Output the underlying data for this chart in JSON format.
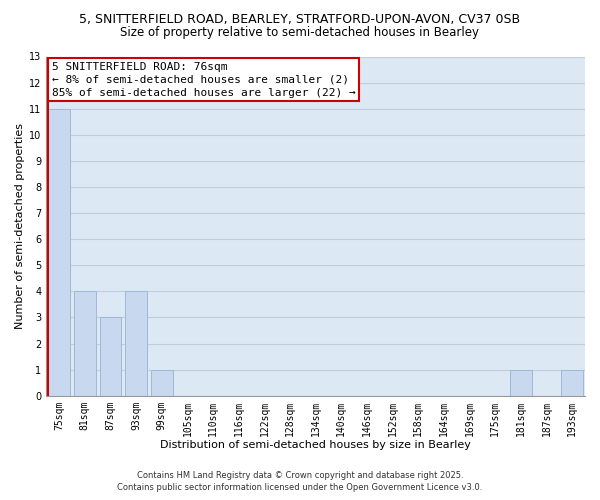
{
  "title_line1": "5, SNITTERFIELD ROAD, BEARLEY, STRATFORD-UPON-AVON, CV37 0SB",
  "title_line2": "Size of property relative to semi-detached houses in Bearley",
  "categories": [
    "75sqm",
    "81sqm",
    "87sqm",
    "93sqm",
    "99sqm",
    "105sqm",
    "110sqm",
    "116sqm",
    "122sqm",
    "128sqm",
    "134sqm",
    "140sqm",
    "146sqm",
    "152sqm",
    "158sqm",
    "164sqm",
    "169sqm",
    "175sqm",
    "181sqm",
    "187sqm",
    "193sqm"
  ],
  "values": [
    11,
    4,
    3,
    4,
    1,
    0,
    0,
    0,
    0,
    0,
    0,
    0,
    0,
    0,
    0,
    0,
    0,
    0,
    1,
    0,
    1
  ],
  "bar_color": "#c8d8ee",
  "bar_edge_color": "#a0b8d8",
  "highlight_edge_color": "#cc0000",
  "annotation_line1": "5 SNITTERFIELD ROAD: 76sqm",
  "annotation_line2": "← 8% of semi-detached houses are smaller (2)",
  "annotation_line3": "85% of semi-detached houses are larger (22) →",
  "annotation_box_color": "#ffffff",
  "annotation_box_edge_color": "#cc0000",
  "xlabel": "Distribution of semi-detached houses by size in Bearley",
  "ylabel": "Number of semi-detached properties",
  "ylim": [
    0,
    13
  ],
  "yticks": [
    0,
    1,
    2,
    3,
    4,
    5,
    6,
    7,
    8,
    9,
    10,
    11,
    12,
    13
  ],
  "grid_color": "#c0cce0",
  "background_color": "#dce8f4",
  "footer_line1": "Contains HM Land Registry data © Crown copyright and database right 2025.",
  "footer_line2": "Contains public sector information licensed under the Open Government Licence v3.0.",
  "title_fontsize": 9,
  "subtitle_fontsize": 8.5,
  "axis_label_fontsize": 8,
  "tick_fontsize": 7,
  "annotation_fontsize": 8,
  "footer_fontsize": 6
}
